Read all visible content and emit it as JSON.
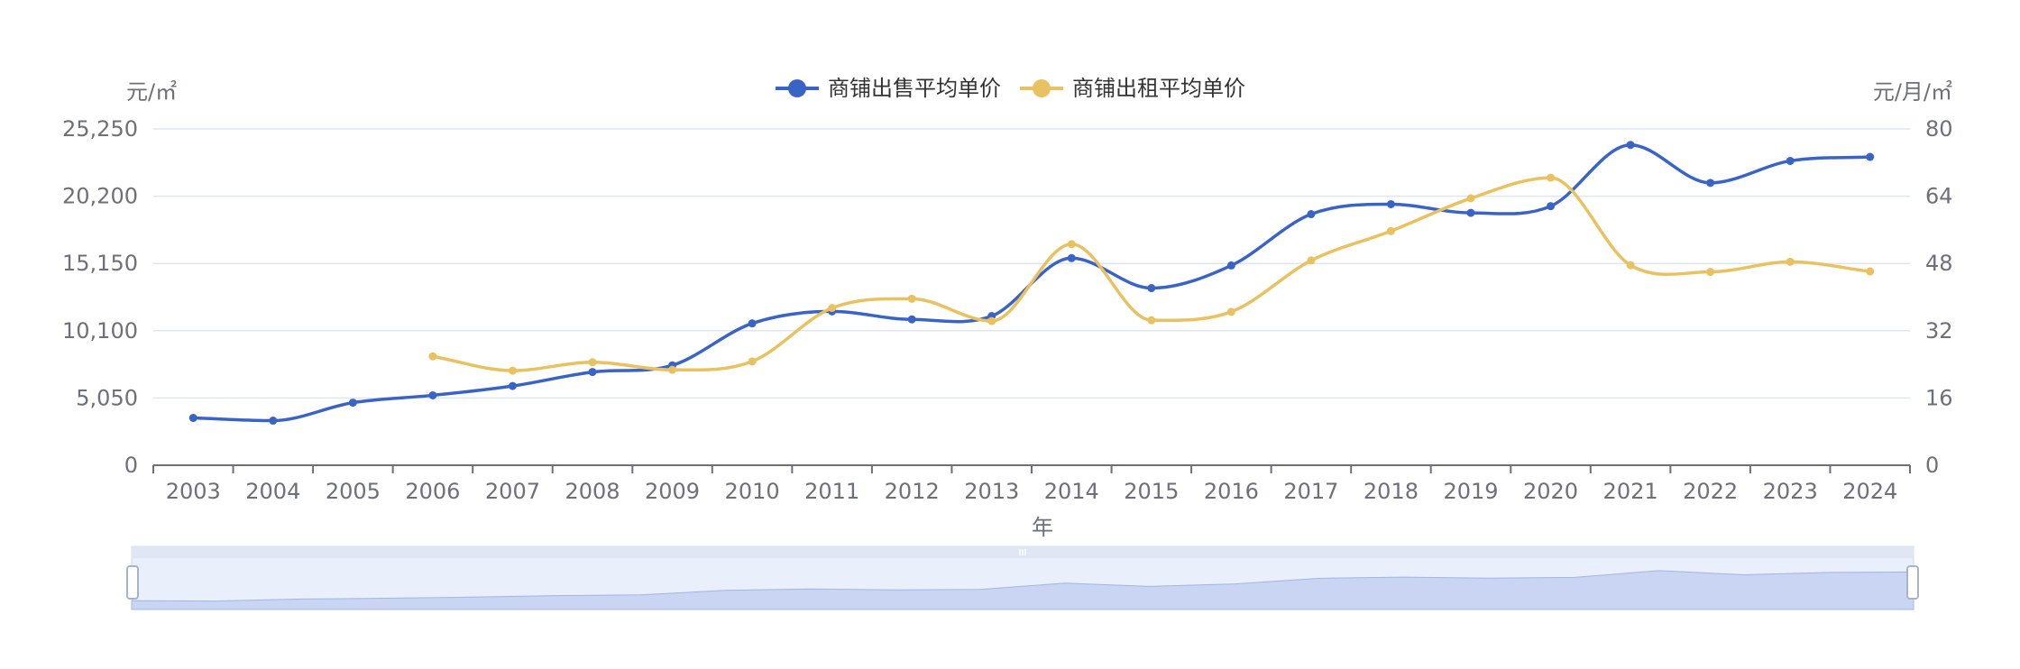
{
  "chart_data": {
    "type": "line",
    "categories": [
      "2003",
      "2004",
      "2005",
      "2006",
      "2007",
      "2008",
      "2009",
      "2010",
      "2011",
      "2012",
      "2013",
      "2014",
      "2015",
      "2016",
      "2017",
      "2018",
      "2019",
      "2020",
      "2021",
      "2022",
      "2023",
      "2024"
    ],
    "xlabel": "年",
    "y_left": {
      "unit": "元/㎡",
      "ylim": [
        0,
        25250
      ],
      "ticks": [
        0,
        5050,
        10100,
        15150,
        20200,
        25250
      ],
      "tick_labels": [
        "0",
        "5,050",
        "10,100",
        "15,150",
        "20,200",
        "25,250"
      ]
    },
    "y_right": {
      "unit": "元/月/㎡",
      "ylim": [
        0,
        80
      ],
      "ticks": [
        0,
        16,
        32,
        48,
        64,
        80
      ],
      "tick_labels": [
        "0",
        "16",
        "32",
        "48",
        "64",
        "80"
      ]
    },
    "series": [
      {
        "name": "商铺出售平均单价",
        "axis": "left",
        "color": "#3a63c6",
        "values": [
          3550,
          3350,
          4700,
          5250,
          5950,
          7000,
          7500,
          10650,
          11550,
          10950,
          11200,
          15550,
          13300,
          15000,
          18850,
          19600,
          18950,
          19450,
          24050,
          21200,
          22850,
          23150
        ]
      },
      {
        "name": "商铺出租平均单价",
        "axis": "right",
        "color": "#e8c160",
        "values": [
          null,
          null,
          null,
          25.9,
          22.5,
          24.5,
          22.7,
          24.7,
          37.4,
          39.6,
          34.3,
          52.6,
          34.5,
          36.5,
          48.7,
          55.7,
          63.5,
          68.4,
          47.6,
          46.0,
          48.4,
          46.1
        ]
      }
    ],
    "legend_position": "top-center",
    "grid": true,
    "data_zoom": {
      "start": "2003",
      "end": "2024"
    }
  }
}
